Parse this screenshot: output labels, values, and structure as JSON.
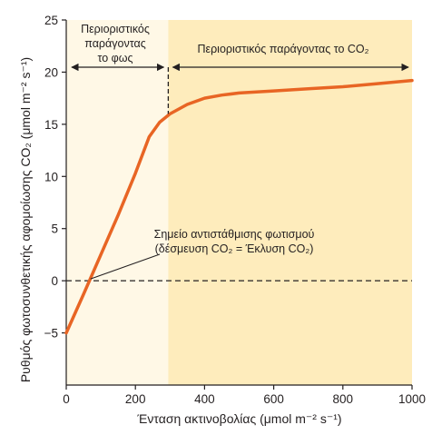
{
  "chart_data": {
    "type": "line",
    "title": "",
    "xlabel": "Ένταση ακτινοβολίας (μmol m⁻² s⁻¹)",
    "ylabel": "Ρυθμός φωτοσυνθετικής αφομοίωσης CO₂ (μmol m⁻² s⁻¹)",
    "xlim": [
      0,
      1000
    ],
    "ylim": [
      -10,
      25
    ],
    "x_ticks": [
      0,
      200,
      400,
      600,
      800,
      1000
    ],
    "y_ticks": [
      -5,
      0,
      5,
      10,
      15,
      20,
      25
    ],
    "grid": false,
    "series": [
      {
        "x": [
          0,
          50,
          100,
          150,
          200,
          240,
          270,
          300,
          350,
          400,
          450,
          500,
          600,
          700,
          800,
          900,
          1000
        ],
        "y": [
          -5,
          -1.3,
          2.5,
          6.3,
          10.3,
          13.8,
          15.2,
          16.0,
          16.9,
          17.5,
          17.8,
          18.0,
          18.2,
          18.4,
          18.6,
          18.9,
          19.2
        ]
      }
    ],
    "regions": [
      {
        "x_range": [
          0,
          295
        ],
        "label": "Περιοριστικός παράγοντας το φως",
        "color": "#fff8e6"
      },
      {
        "x_range": [
          295,
          1000
        ],
        "label": "Περιοριστικός παράγοντας το CO₂",
        "color": "#feecbc"
      }
    ],
    "divider_x": 295,
    "annotation": {
      "line1": "Σημείο αντιστάθμισης φωτισμού",
      "line2": "(δέσμευση CO₂ = Έκλυση CO₂)",
      "point": [
        65,
        0
      ]
    },
    "colors": {
      "curve": "#e86524",
      "light_region": "#fff8e6",
      "co2_region": "#feecbc",
      "ink": "#231f20"
    }
  }
}
